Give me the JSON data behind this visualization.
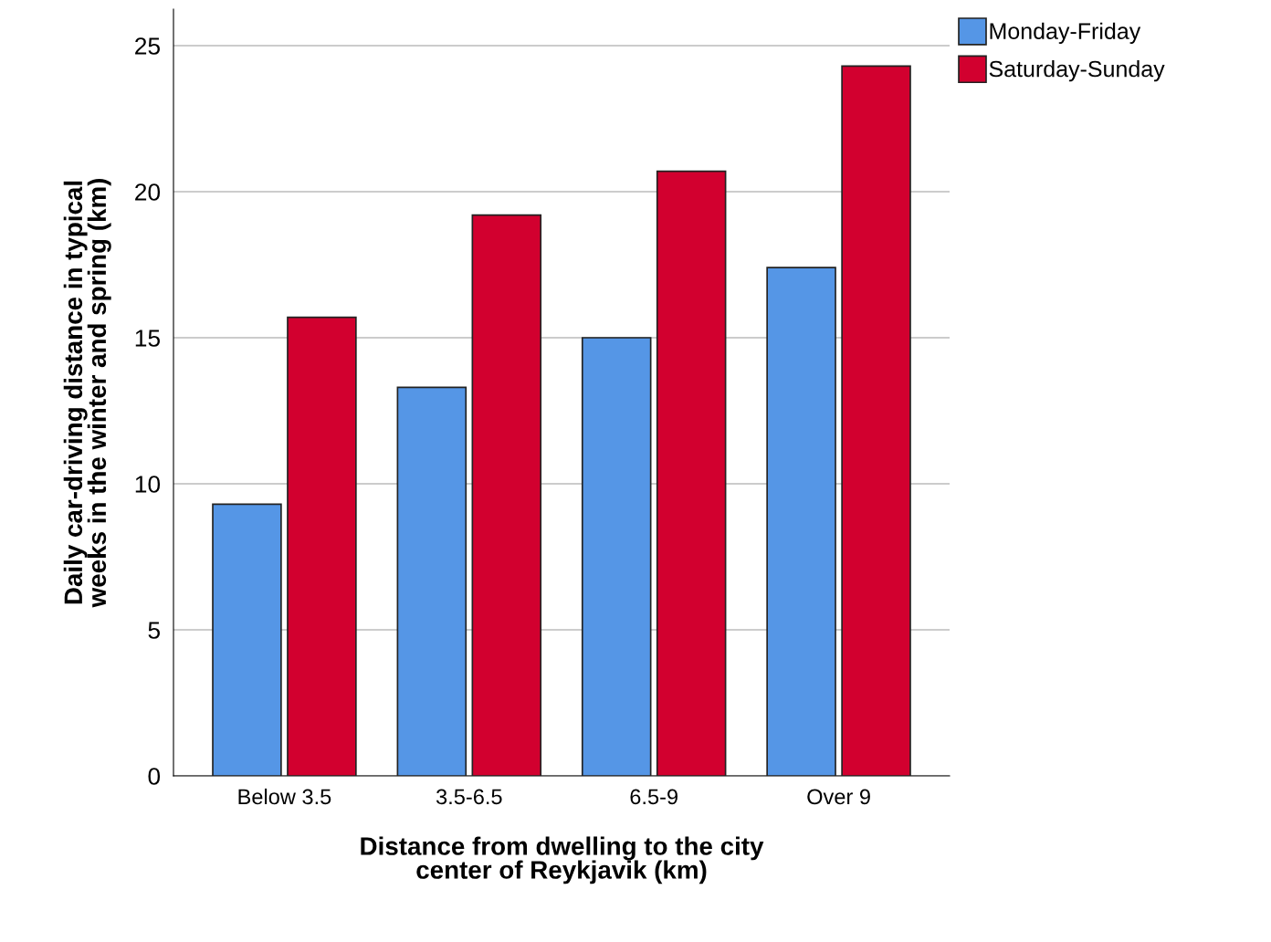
{
  "chart_data": {
    "type": "bar",
    "xlabel": "Distance from dwelling to the city\ncenter of Reykjavik (km)",
    "ylabel": "Daily car-driving distance in typical\nweeks in the winter and spring (km)",
    "categories": [
      "Below 3.5",
      "3.5-6.5",
      "6.5-9",
      "Over 9"
    ],
    "series": [
      {
        "name": "Monday-Friday",
        "color": "#5596e6",
        "values": [
          9.3,
          13.3,
          15.0,
          17.4
        ]
      },
      {
        "name": "Saturday-Sunday",
        "color": "#d2002f",
        "values": [
          15.7,
          19.2,
          20.7,
          24.3
        ]
      }
    ],
    "ylim": [
      0,
      26.25
    ],
    "yticks": [
      0,
      5,
      10,
      15,
      20,
      25
    ],
    "grid": "y",
    "legend": "top right"
  }
}
